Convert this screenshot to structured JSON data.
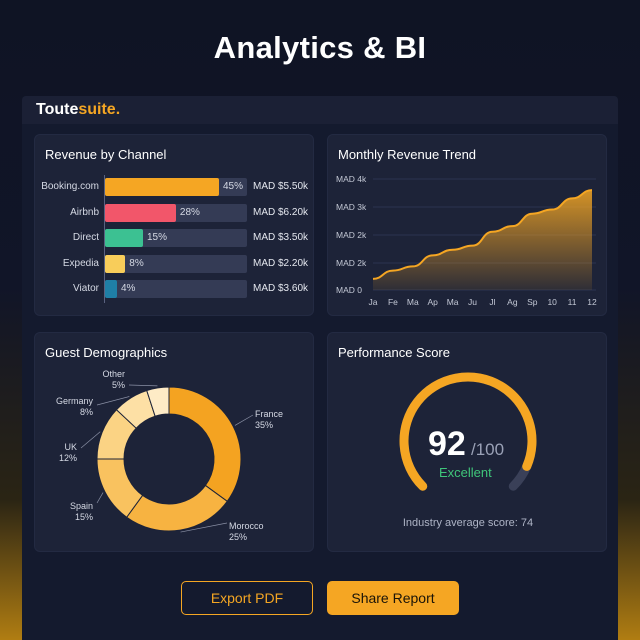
{
  "page": {
    "title": "Analytics & BI"
  },
  "app": {
    "brand_part1": "Toute",
    "brand_part2": "suite."
  },
  "revenue_by_channel": {
    "title": "Revenue by Channel",
    "channels": [
      {
        "name": "Booking.com",
        "percent": 45,
        "percent_label": "45%",
        "amount": "MAD $5.50k",
        "color": "#f5a623"
      },
      {
        "name": "Airbnb",
        "percent": 28,
        "percent_label": "28%",
        "amount": "MAD $6.20k",
        "color": "#f2566a"
      },
      {
        "name": "Direct",
        "percent": 15,
        "percent_label": "15%",
        "amount": "MAD $3.50k",
        "color": "#3cc192"
      },
      {
        "name": "Expedia",
        "percent": 8,
        "percent_label": "8%",
        "amount": "MAD $2.20k",
        "color": "#f8cd5a"
      },
      {
        "name": "Viator",
        "percent": 4,
        "percent_label": "4%",
        "amount": "MAD $3.60k",
        "color": "#1f7fa6"
      }
    ]
  },
  "monthly_trend": {
    "title": "Monthly Revenue Trend",
    "y_ticks": [
      "MAD 4k",
      "MAD 3k",
      "MAD 2k",
      "MAD 2k",
      "MAD 0"
    ],
    "x_ticks": [
      "Ja",
      "Fe",
      "Ma",
      "Ap",
      "Ma",
      "Ju",
      "Jl",
      "Ag",
      "Sp",
      "10",
      "11",
      "12"
    ],
    "color": "#f5a623"
  },
  "guest_demographics": {
    "title": "Guest Demographics",
    "segments": [
      {
        "country": "France",
        "percent": 35,
        "percent_label": "35%",
        "color": "#f4a321"
      },
      {
        "country": "Morocco",
        "percent": 25,
        "percent_label": "25%",
        "color": "#f7b341"
      },
      {
        "country": "Spain",
        "percent": 15,
        "percent_label": "15%",
        "color": "#f9c25f"
      },
      {
        "country": "UK",
        "percent": 12,
        "percent_label": "12%",
        "color": "#fbd384"
      },
      {
        "country": "Germany",
        "percent": 8,
        "percent_label": "8%",
        "color": "#fde0a5"
      },
      {
        "country": "Other",
        "percent": 5,
        "percent_label": "5%",
        "color": "#feebc6"
      }
    ]
  },
  "performance": {
    "title": "Performance Score",
    "score": "92",
    "denominator": "/100",
    "score_value": 92,
    "rating": "Excellent",
    "industry_text": "Industry average score: 74",
    "arc_color": "#f5a623",
    "track_color": "#3a4058"
  },
  "actions": {
    "export_label": "Export PDF",
    "share_label": "Share Report"
  },
  "chart_data": [
    {
      "type": "bar",
      "title": "Revenue by Channel",
      "categories": [
        "Booking.com",
        "Airbnb",
        "Direct",
        "Expedia",
        "Viator"
      ],
      "values": [
        45,
        28,
        15,
        8,
        4
      ]
    },
    {
      "type": "area",
      "title": "Monthly Revenue Trend",
      "x": [
        "Ja",
        "Fe",
        "Ma",
        "Ap",
        "Ma",
        "Ju",
        "Jl",
        "Ag",
        "Sp",
        "10",
        "11",
        "12"
      ],
      "values": [
        0.4,
        0.7,
        0.85,
        1.25,
        1.45,
        1.6,
        2.1,
        2.3,
        2.75,
        2.9,
        3.3,
        3.6
      ],
      "ylim": [
        0,
        4
      ]
    },
    {
      "type": "pie",
      "title": "Guest Demographics",
      "categories": [
        "France",
        "Morocco",
        "Spain",
        "UK",
        "Germany",
        "Other"
      ],
      "values": [
        35,
        25,
        15,
        12,
        8,
        5
      ]
    }
  ]
}
